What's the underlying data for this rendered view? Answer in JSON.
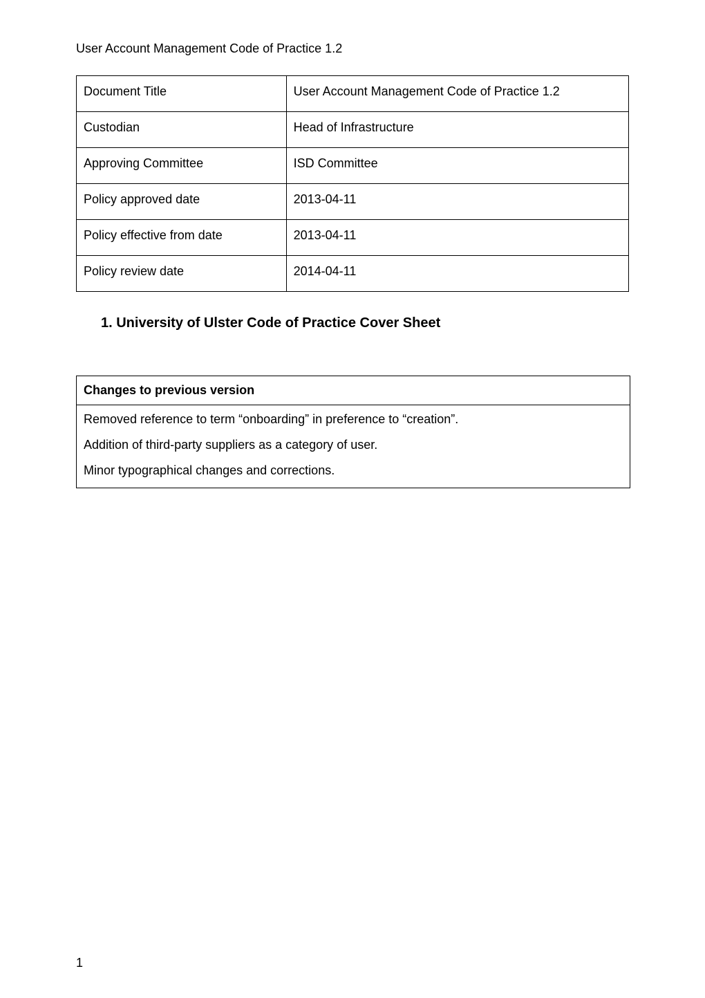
{
  "header": "User Account Management Code of Practice 1.2",
  "meta_table": {
    "rows": [
      {
        "label": "Document Title",
        "value": "User Account Management Code of Practice 1.2"
      },
      {
        "label": "Custodian",
        "value": "Head of Infrastructure"
      },
      {
        "label": "Approving Committee",
        "value": "ISD Committee"
      },
      {
        "label": "Policy approved date",
        "value": "2013-04-11"
      },
      {
        "label": "Policy effective from date",
        "value": "2013-04-11"
      },
      {
        "label": "Policy review date",
        "value": "2014-04-11"
      }
    ]
  },
  "section_title": "1. University of Ulster Code of Practice Cover Sheet",
  "changes": {
    "heading": "Changes to previous version",
    "items": [
      "Removed reference to term “onboarding” in preference to “creation”.",
      "Addition of third-party suppliers as a category of user.",
      "Minor typographical changes and corrections."
    ]
  },
  "page_number": "1",
  "style": {
    "background_color": "#ffffff",
    "text_color": "#000000",
    "border_color": "#000000",
    "body_font_size_pt": 14,
    "header_font_size_pt": 14,
    "section_title_font_size_pt": 15,
    "section_title_font_weight": "bold",
    "changes_heading_font_weight": "bold",
    "font_family": "Arial"
  }
}
